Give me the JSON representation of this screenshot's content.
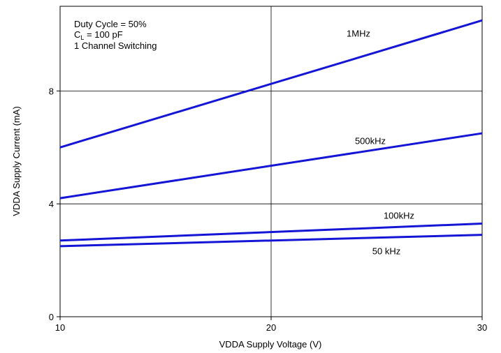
{
  "chart_data": {
    "type": "line",
    "title": "",
    "xlabel": "VDDA Supply Voltage (V)",
    "ylabel": "VDDA Supply Current (mA)",
    "xlim": [
      10,
      30
    ],
    "ylim": [
      0,
      11
    ],
    "xticks": [
      10,
      20,
      30
    ],
    "yticks": [
      0,
      4,
      8
    ],
    "grid": true,
    "annotation_lines": [
      {
        "main": "Duty Cycle = 50%"
      },
      {
        "main": "C",
        "sub": "L",
        "rest": " = 100 pF"
      },
      {
        "main": "1 Channel Switching"
      }
    ],
    "line_color": "#1515d6",
    "series": [
      {
        "name": "1MHz",
        "x": [
          10,
          30
        ],
        "y": [
          6.0,
          10.5
        ]
      },
      {
        "name": "500kHz",
        "x": [
          10,
          30
        ],
        "y": [
          4.2,
          6.5
        ]
      },
      {
        "name": "100kHz",
        "x": [
          10,
          30
        ],
        "y": [
          2.7,
          3.3
        ]
      },
      {
        "name": "50 kHz",
        "x": [
          10,
          30
        ],
        "y": [
          2.5,
          2.9
        ]
      }
    ]
  }
}
